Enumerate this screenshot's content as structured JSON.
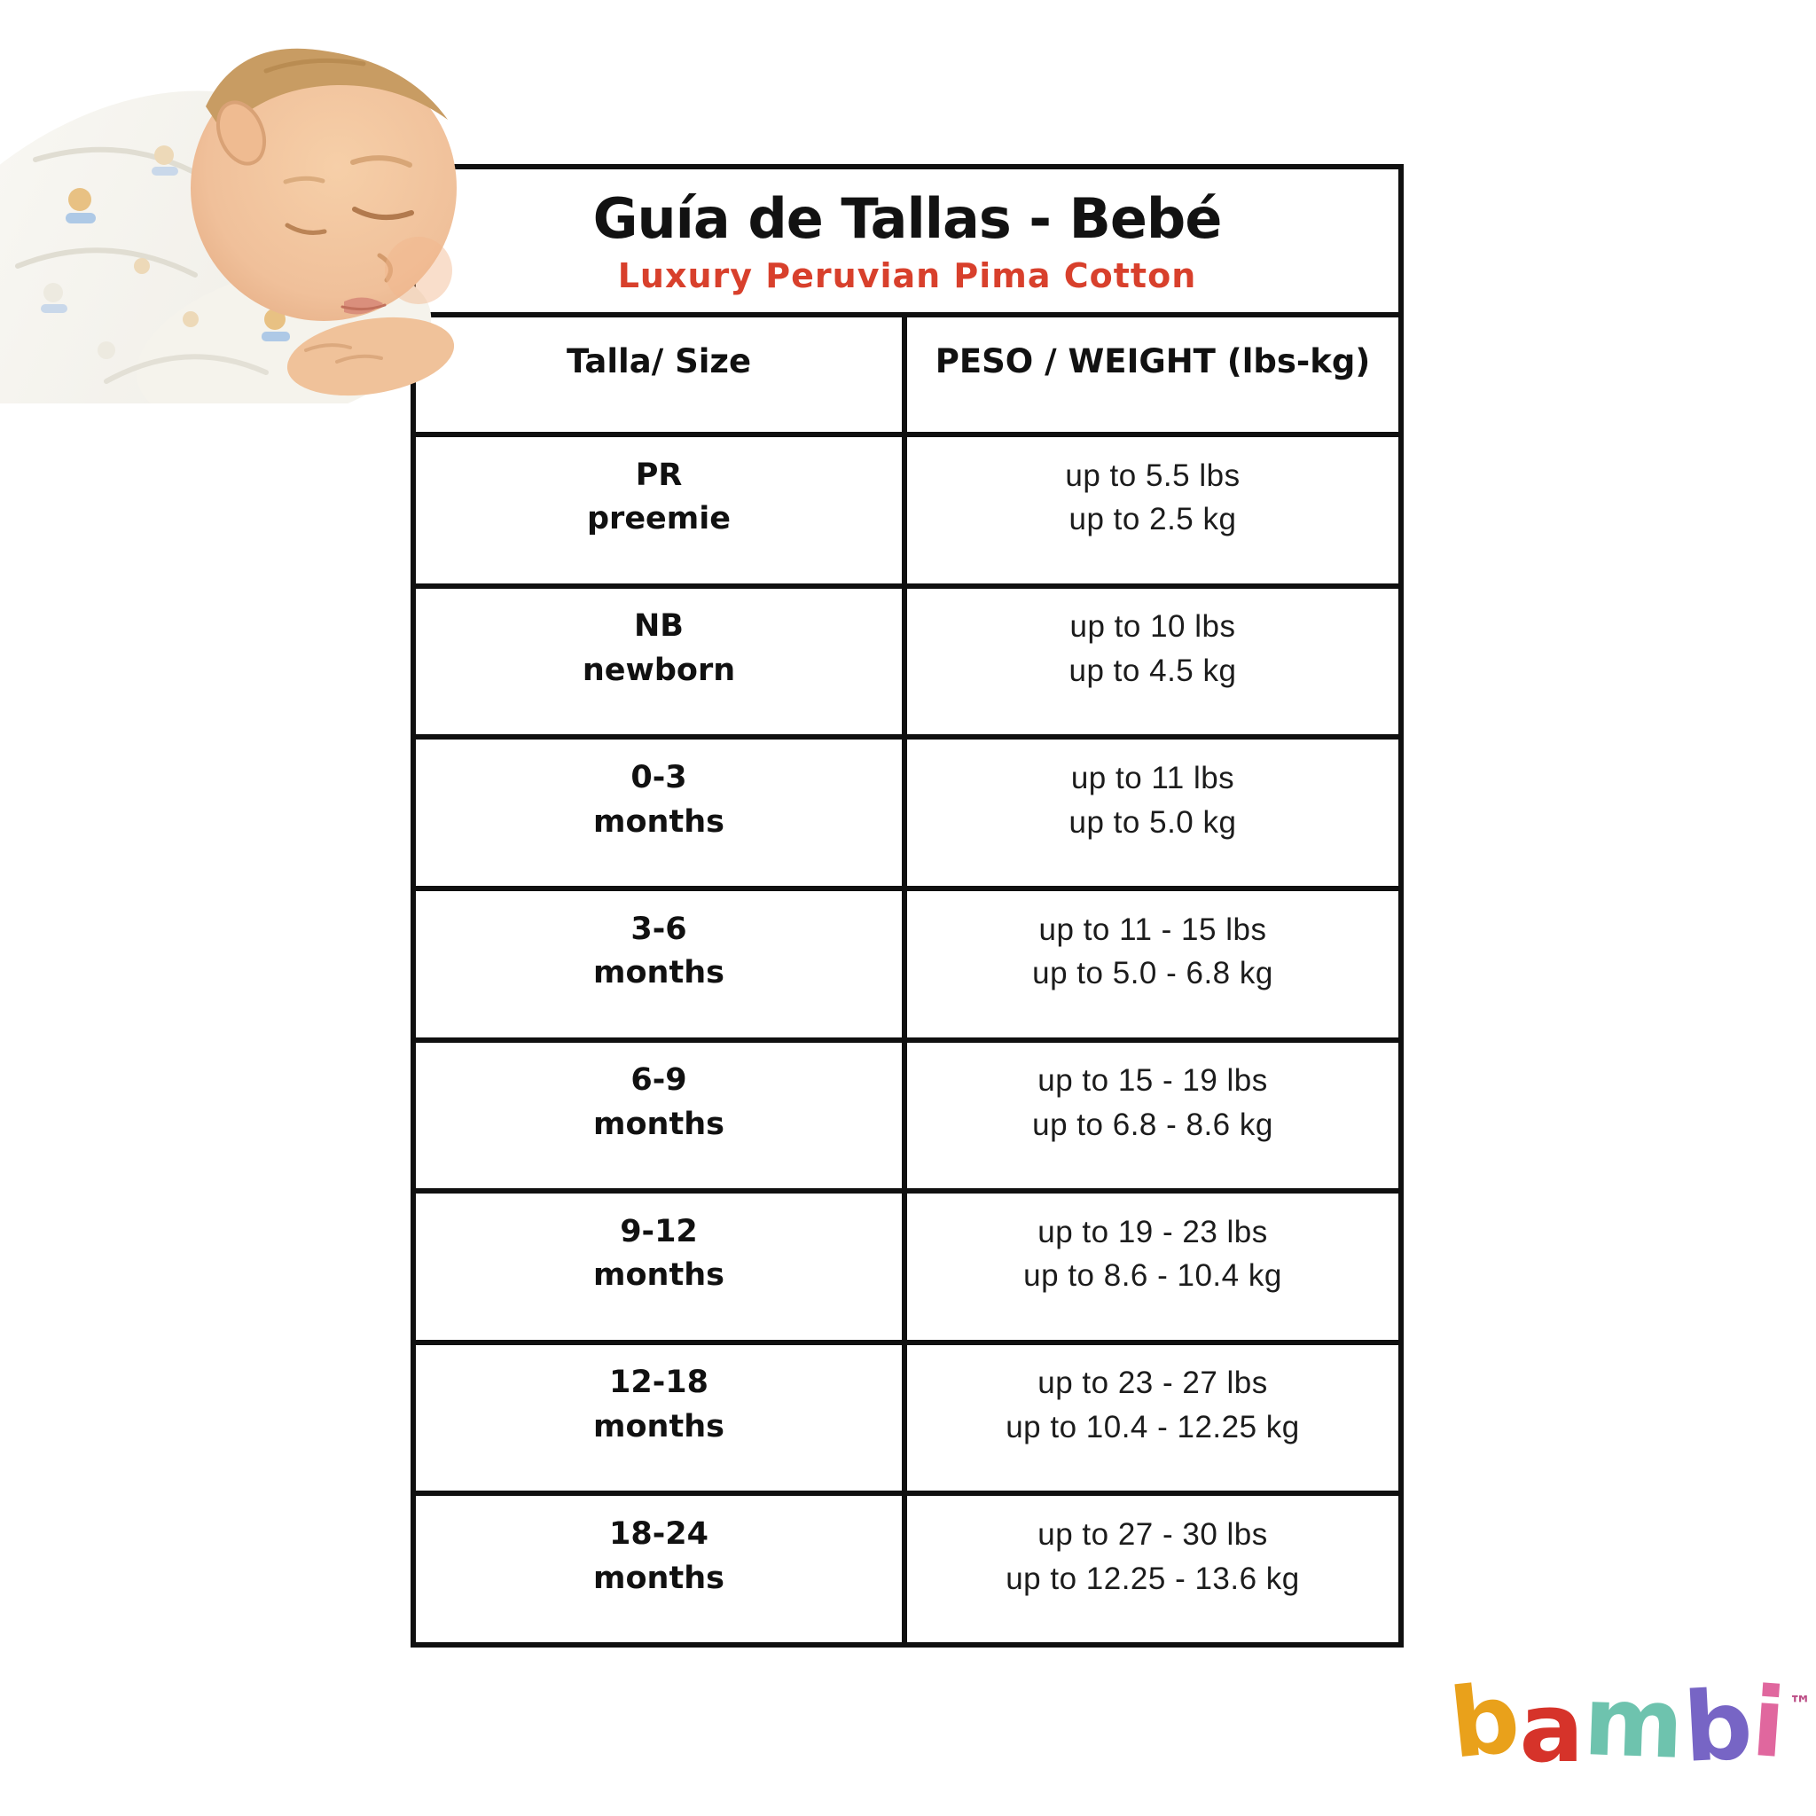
{
  "header": {
    "title": "Guía de Tallas - Bebé",
    "subtitle": "Luxury Peruvian Pima Cotton"
  },
  "table": {
    "columns": [
      "Talla/ Size",
      "PESO / WEIGHT (lbs-kg)"
    ],
    "rows": [
      {
        "size": "PR",
        "size_sub": "preemie",
        "weight_lbs": "up to 5.5 lbs",
        "weight_kg": "up to 2.5 kg"
      },
      {
        "size": "NB",
        "size_sub": "newborn",
        "weight_lbs": "up to 10 lbs",
        "weight_kg": "up to 4.5 kg"
      },
      {
        "size": "0-3",
        "size_sub": "months",
        "weight_lbs": "up to 11 lbs",
        "weight_kg": "up to 5.0 kg"
      },
      {
        "size": "3-6",
        "size_sub": "months",
        "weight_lbs": "up to 11 - 15 lbs",
        "weight_kg": "up to 5.0 - 6.8 kg"
      },
      {
        "size": "6-9",
        "size_sub": "months",
        "weight_lbs": "up to 15 - 19 lbs",
        "weight_kg": "up to 6.8 - 8.6 kg"
      },
      {
        "size": "9-12",
        "size_sub": "months",
        "weight_lbs": "up to 19 - 23 lbs",
        "weight_kg": "up to 8.6 - 10.4 kg"
      },
      {
        "size": "12-18",
        "size_sub": "months",
        "weight_lbs": "up to 23 - 27 lbs",
        "weight_kg": "up to 10.4 - 12.25 kg"
      },
      {
        "size": "18-24",
        "size_sub": "months",
        "weight_lbs": "up to 27 - 30 lbs",
        "weight_kg": "up to 12.25 - 13.6 kg"
      }
    ]
  },
  "logo": {
    "name": "bambi",
    "tm": "™",
    "tm_color": "#BC4C85",
    "letters": [
      {
        "char": "b",
        "color": "#E9A11B"
      },
      {
        "char": "a",
        "color": "#D6332A"
      },
      {
        "char": "m",
        "color": "#6EC3AE"
      },
      {
        "char": "b",
        "color": "#7765C5"
      },
      {
        "char": "i",
        "color": "#E0679E"
      }
    ]
  },
  "colors": {
    "accent_red": "#D8402C",
    "border_black": "#101010"
  },
  "illustration": {
    "name": "sleeping-newborn-photo"
  }
}
